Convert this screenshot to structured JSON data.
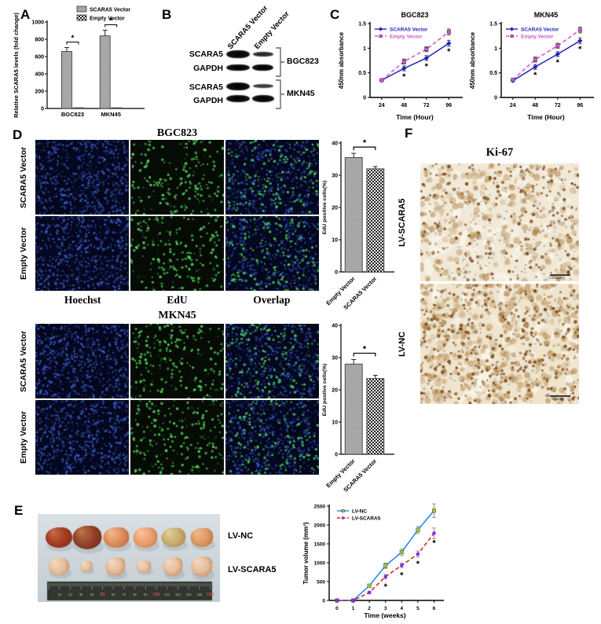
{
  "figure": {
    "background": "#ffffff"
  },
  "panels": {
    "A": {
      "letter": "A"
    },
    "B": {
      "letter": "B",
      "lane_labels": [
        "SCARA5 Vector",
        "Empty Vector"
      ],
      "band_labels": [
        "SCARA5",
        "GAPDH",
        "SCARA5",
        "GAPDH"
      ],
      "group_labels": [
        "BGC823",
        "MKN45"
      ]
    },
    "C": {
      "letter": "C"
    },
    "D": {
      "letter": "D",
      "titles": [
        "BGC823",
        "MKN45"
      ],
      "row_labels": [
        "SCARA5 Vector",
        "Empty Vector"
      ],
      "col_labels": [
        "Hoechst",
        "EdU",
        "Overlap"
      ]
    },
    "E": {
      "letter": "E",
      "photo_labels": [
        "LV-NC",
        "LV-SCARA5"
      ],
      "ruler_numbers": [
        "50",
        "100",
        "150"
      ]
    },
    "F": {
      "letter": "F",
      "title": "Ki-67",
      "row_labels": [
        "LV-SCARA5",
        "LV-NC"
      ],
      "scale_label": "50μm"
    }
  },
  "colors": {
    "scara5_vector_line": "#2222bb",
    "empty_vector_line": "#cc55cc",
    "lv_nc_line": "#1c86ee",
    "lv_nc_marker": "#9acd32",
    "lv_scara5_line": "#d02020",
    "lv_scara5_marker": "#8a2be2",
    "bar_gray": "#adadad"
  },
  "chart_data": [
    {
      "id": "pa",
      "type": "bar",
      "ylabel": "Relative SCARA5 levels (fold change)",
      "ylim": [
        0,
        1000
      ],
      "yticks": [
        0,
        200,
        400,
        600,
        800,
        1000
      ],
      "categories": [
        "BGC823",
        "MKN45"
      ],
      "series": [
        {
          "name": "SCARA5 Vector",
          "pattern": "gray",
          "values": [
            660,
            840
          ],
          "errors": [
            45,
            65
          ]
        },
        {
          "name": "Empty Vector",
          "pattern": "checker",
          "values": [
            8,
            8
          ],
          "errors": [
            0,
            0
          ]
        }
      ],
      "sig": "*",
      "layout": {
        "ml": 46,
        "mt": 26,
        "w": 116,
        "h": 110,
        "bw": 13,
        "legend": [
          84,
          6
        ],
        "cat_fr": [
          0.28,
          0.7
        ],
        "ylx": 9,
        "ylsize": 7.5
      }
    },
    {
      "id": "c1",
      "type": "line",
      "title": "BGC823",
      "xlabel": "Time (Hour)",
      "ylabel": "450nm absorbance",
      "x": [
        24,
        48,
        72,
        96
      ],
      "ylim": [
        0,
        1.5
      ],
      "yticks": [
        "0",
        "0.5",
        "1",
        "1.5"
      ],
      "series": [
        {
          "name": "SCARA5 Vector",
          "color": "#2222bb",
          "dash": "solid",
          "marker": "diamond",
          "values": [
            0.35,
            0.59,
            0.8,
            1.1
          ],
          "errors": [
            0.02,
            0.05,
            0.05,
            0.06
          ]
        },
        {
          "name": "Empty Vector",
          "color": "#cc55cc",
          "dash": "dashed",
          "marker": "square",
          "values": [
            0.35,
            0.73,
            0.98,
            1.33
          ],
          "errors": [
            0.02,
            0.05,
            0.05,
            0.06
          ]
        }
      ],
      "ast_x": [
        48,
        72,
        96
      ],
      "ast_series": 0,
      "ast_symbol": "*",
      "layout": {
        "ml": 46,
        "mt": 24,
        "w": 114,
        "h": 94,
        "xfrac": [
          0.13,
          0.38,
          0.63,
          0.88
        ],
        "legend": [
          52,
          31
        ],
        "legend_colored": true,
        "title_y": 16,
        "xlabel_y": 146,
        "ylx": 12,
        "ast_dy": 14
      }
    },
    {
      "id": "c2",
      "type": "line",
      "title": "MKN45",
      "xlabel": "Time (Hour)",
      "ylabel": "450nm absorbance",
      "x": [
        24,
        48,
        72,
        96
      ],
      "ylim": [
        0,
        1.5
      ],
      "yticks": [
        "0",
        "0.5",
        "1",
        "1.5"
      ],
      "series": [
        {
          "name": "SCARA5 Vector",
          "color": "#2222bb",
          "dash": "solid",
          "marker": "diamond",
          "values": [
            0.34,
            0.62,
            0.88,
            1.15
          ],
          "errors": [
            0.02,
            0.05,
            0.05,
            0.06
          ]
        },
        {
          "name": "Empty Vector",
          "color": "#cc55cc",
          "dash": "dashed",
          "marker": "square",
          "values": [
            0.36,
            0.77,
            1.05,
            1.37
          ],
          "errors": [
            0.02,
            0.05,
            0.05,
            0.06
          ]
        }
      ],
      "ast_x": [
        48,
        72,
        96
      ],
      "ast_series": 0,
      "ast_symbol": "*",
      "layout": {
        "ml": 46,
        "mt": 24,
        "w": 114,
        "h": 94,
        "xfrac": [
          0.13,
          0.38,
          0.63,
          0.88
        ],
        "legend": [
          52,
          31
        ],
        "legend_colored": true,
        "title_y": 16,
        "xlabel_y": 146,
        "ylx": 12,
        "ast_dy": 14
      }
    },
    {
      "id": "d1",
      "type": "bar",
      "ylabel": "EdU positive cells(%)",
      "ylim": [
        0,
        40
      ],
      "yticks": [
        0,
        10,
        20,
        30,
        40
      ],
      "categories": [
        "Empty Vector",
        "SCARA5 Vector"
      ],
      "values": [
        35.5,
        32
      ],
      "errors": [
        1.3,
        0.7
      ],
      "patterns": [
        "gray",
        "checker"
      ],
      "sig": "*",
      "layout": {
        "ml": 26,
        "mt": 14,
        "w": 60,
        "h": 164,
        "bw": 22,
        "cat_fr": [
          0.27,
          0.73
        ],
        "ylx": 7,
        "ylsize": 6.8
      }
    },
    {
      "id": "d2",
      "type": "bar",
      "ylabel": "EdU postive cells(%)",
      "ylim": [
        0,
        40
      ],
      "yticks": [
        0,
        10,
        20,
        30,
        40
      ],
      "categories": [
        "Empty Vector",
        "SCARA5 Vector"
      ],
      "values": [
        28,
        23.5
      ],
      "errors": [
        1.4,
        1.0
      ],
      "patterns": [
        "gray",
        "checker"
      ],
      "sig": "*",
      "layout": {
        "ml": 26,
        "mt": 14,
        "w": 60,
        "h": 164,
        "bw": 22,
        "cat_fr": [
          0.27,
          0.73
        ],
        "ylx": 7,
        "ylsize": 6.8
      }
    },
    {
      "id": "pe",
      "type": "line",
      "title": "",
      "xlabel": "Time (weeks)",
      "ylabel": "Tumor volume (mm³)",
      "x": [
        0,
        1,
        2,
        3,
        4,
        5,
        6
      ],
      "ylim": [
        0,
        2500
      ],
      "yticks": [
        0,
        500,
        1000,
        1500,
        2000,
        2500
      ],
      "series": [
        {
          "name": "LV-NC",
          "color": "#1c86ee",
          "marker": "square",
          "marker_color": "#9acd32",
          "dash": "solid",
          "values": [
            0,
            0,
            390,
            920,
            1280,
            1870,
            2380
          ],
          "errors": [
            0,
            0,
            40,
            70,
            90,
            90,
            180
          ]
        },
        {
          "name": "LV-SCARA5",
          "color": "#d02020",
          "marker": "circle",
          "marker_color": "#8a2be2",
          "dash": "dashed",
          "values": [
            0,
            0,
            210,
            630,
            930,
            1230,
            1780
          ],
          "errors": [
            0,
            0,
            30,
            60,
            60,
            80,
            140
          ]
        }
      ],
      "ast_x": [
        3,
        4,
        5,
        6
      ],
      "ast_series": 1,
      "ast_symbol": "*",
      "layout": {
        "ml": 36,
        "mt": 10,
        "w": 142,
        "h": 120,
        "xfrac": [
          0.07,
          0.215,
          0.36,
          0.505,
          0.65,
          0.795,
          0.94
        ],
        "legend": [
          46,
          16
        ],
        "xlabel_y": 152,
        "ylx": 9,
        "err_color": "#888",
        "ast_dy": 16,
        "tsize": 6.5
      }
    }
  ]
}
